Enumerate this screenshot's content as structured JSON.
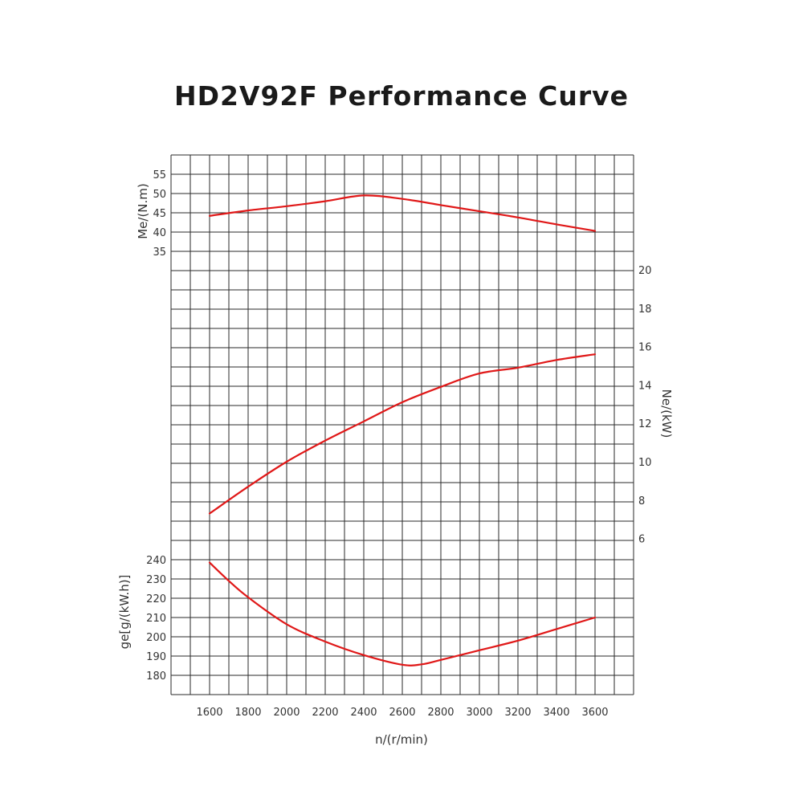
{
  "title": "HD2V92F Performance Curve",
  "colors": {
    "curve": "#e01818",
    "grid": "#2a2a2a",
    "text": "#333333"
  },
  "chart_data": {
    "type": "line",
    "title": "HD2V92F Performance Curve",
    "xlabel": "n/(r/min)",
    "x_ticks": [
      "1600",
      "1800",
      "2000",
      "2200",
      "2400",
      "2600",
      "2800",
      "3000",
      "3200",
      "3400",
      "3600"
    ],
    "grid": true,
    "axes": [
      {
        "id": "me",
        "label": "Me/(N.m)",
        "side": "left-top",
        "ticks": [
          "55",
          "50",
          "45",
          "40",
          "35"
        ],
        "range": [
          35,
          55
        ]
      },
      {
        "id": "ne",
        "label": "Ne/(kW)",
        "side": "right",
        "ticks": [
          "20",
          "18",
          "16",
          "14",
          "12",
          "10",
          "8",
          "6"
        ],
        "range": [
          6,
          20
        ]
      },
      {
        "id": "ge",
        "label": "ge[g/(kW.h)]",
        "side": "left-bottom",
        "ticks": [
          "240",
          "230",
          "220",
          "210",
          "200",
          "190",
          "180"
        ],
        "range": [
          180,
          240
        ]
      }
    ],
    "series": [
      {
        "axis": "me",
        "points": [
          [
            1600,
            44.2
          ],
          [
            1800,
            45.6
          ],
          [
            2000,
            46.7
          ],
          [
            2200,
            48.0
          ],
          [
            2400,
            49.5
          ],
          [
            2600,
            48.6
          ],
          [
            2800,
            47.0
          ],
          [
            3000,
            45.4
          ],
          [
            3200,
            43.8
          ],
          [
            3400,
            42.0
          ],
          [
            3600,
            40.3
          ]
        ]
      },
      {
        "axis": "ne",
        "points": [
          [
            1600,
            7.3
          ],
          [
            1800,
            8.7
          ],
          [
            2000,
            10.0
          ],
          [
            2200,
            11.1
          ],
          [
            2400,
            12.1
          ],
          [
            2600,
            13.1
          ],
          [
            2800,
            13.9
          ],
          [
            3000,
            14.6
          ],
          [
            3200,
            14.9
          ],
          [
            3400,
            15.3
          ],
          [
            3600,
            15.6
          ]
        ]
      },
      {
        "axis": "ge",
        "points": [
          [
            1600,
            238.5
          ],
          [
            1700,
            229
          ],
          [
            1800,
            220.5
          ],
          [
            2000,
            206.5
          ],
          [
            2200,
            197.5
          ],
          [
            2400,
            190.5
          ],
          [
            2600,
            185.5
          ],
          [
            2700,
            185.7
          ],
          [
            2800,
            188
          ],
          [
            3000,
            193
          ],
          [
            3200,
            198
          ],
          [
            3400,
            204
          ],
          [
            3600,
            210
          ]
        ]
      }
    ]
  }
}
